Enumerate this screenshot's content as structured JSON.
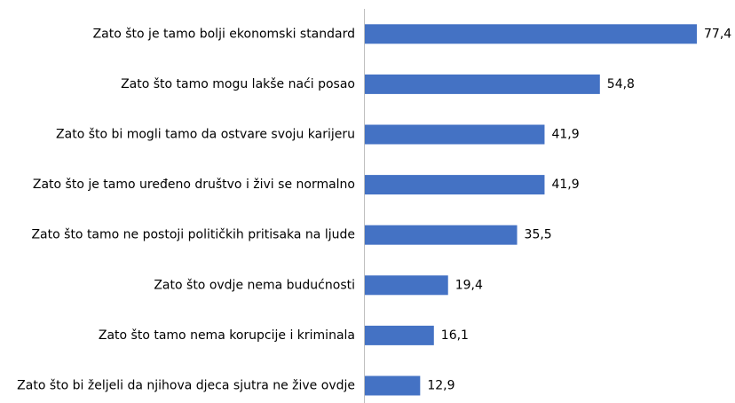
{
  "chart_data": {
    "type": "hbar",
    "categories": [
      "Zato što je tamo bolji ekonomski standard",
      "Zato što tamo mogu lakše naći posao",
      "Zato što bi mogli tamo da ostvare svoju karijeru",
      "Zato što je tamo uređeno društvo i živi se normalno",
      "Zato što tamo ne postoji političkih pritisaka na ljude",
      "Zato što ovdje nema budućnosti",
      "Zato što tamo nema korupcije i kriminala",
      "Zato što bi željeli da njihova djeca sjutra ne žive ovdje"
    ],
    "values": [
      77.4,
      54.8,
      41.9,
      41.9,
      35.5,
      19.4,
      16.1,
      12.9
    ],
    "value_labels": [
      "77,4",
      "54,8",
      "41,9",
      "41,9",
      "35,5",
      "19,4",
      "16,1",
      "12,9"
    ],
    "color": "#4472c4"
  }
}
